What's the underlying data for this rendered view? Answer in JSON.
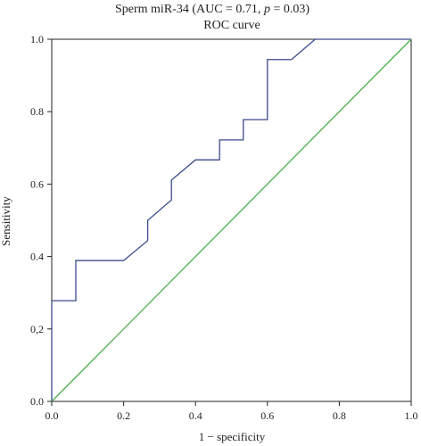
{
  "chart_data": {
    "type": "line",
    "title_line1_prefix": "Sperm miR-34 (AUC = 0.71, ",
    "title_line1_p": "p",
    "title_line1_suffix": " = 0.03)",
    "title_line2": "ROC curve",
    "xlabel": "1 − specificity",
    "ylabel": "Sensitivity",
    "xlim": [
      0,
      1
    ],
    "ylim": [
      0,
      1
    ],
    "x_tick_labels": [
      "0.0",
      "0.2",
      "0.4",
      "0.6",
      "0.8",
      "1.0"
    ],
    "x_tick_values": [
      0,
      0.2,
      0.4,
      0.6,
      0.8,
      1.0
    ],
    "y_tick_labels": [
      "0.0",
      "0,2",
      "0.4",
      "0.6",
      "0.8",
      "1.0"
    ],
    "y_tick_values": [
      0,
      0.2,
      0.4,
      0.6,
      0.8,
      1.0
    ],
    "grid": false,
    "series": [
      {
        "color": "#3a4a8c",
        "x": [
          0,
          0,
          0.067,
          0.067,
          0.2,
          0.267,
          0.267,
          0.333,
          0.333,
          0.4,
          0.4,
          0.467,
          0.467,
          0.533,
          0.533,
          0.6,
          0.6,
          0.667,
          0.733,
          1.0
        ],
        "y": [
          0,
          0.278,
          0.278,
          0.389,
          0.389,
          0.444,
          0.5,
          0.556,
          0.611,
          0.667,
          0.667,
          0.667,
          0.722,
          0.722,
          0.778,
          0.778,
          0.944,
          0.944,
          1.0,
          1.0
        ]
      },
      {
        "color": "#4caf50",
        "x": [
          0,
          1
        ],
        "y": [
          0,
          1
        ]
      }
    ]
  }
}
